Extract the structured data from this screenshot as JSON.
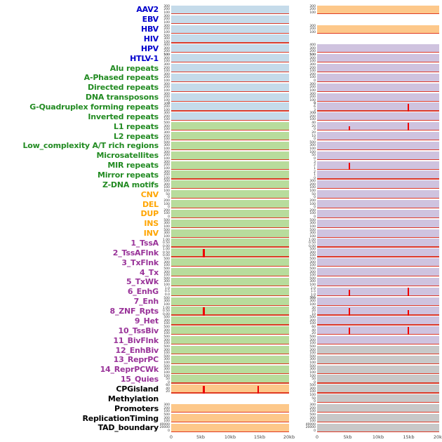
{
  "colors": {
    "label": {
      "virus": "#0000cc",
      "repeats": "#228B22",
      "sv": "#ffa500",
      "chromhmm": "#993399",
      "other": "#000000"
    },
    "panel": {
      "blue": "#c5dbea",
      "green": "#b8dc9c",
      "orange": "#fdc88a",
      "purple": "#cfc3df",
      "gray": "#c8c8c8"
    },
    "signal": "#ee0000"
  },
  "chart_data": {
    "type": "line",
    "x_axis": {
      "ticks": [
        "0",
        "5kb",
        "10kb",
        "15kb",
        "20kb"
      ],
      "range_kb": [
        0,
        20
      ]
    },
    "note_layout": "two columns of per-feature signal strips, flat red baseline with occasional spikes",
    "tracks": [
      {
        "label": "AAV2",
        "group": "virus",
        "left": {
          "bg": "blue",
          "ticks": [
            "300",
            "200",
            "100"
          ],
          "spikes": []
        },
        "right": {
          "bg": "orange",
          "ticks": [
            "300",
            "200",
            "100"
          ],
          "spikes": []
        }
      },
      {
        "label": "EBV",
        "group": "virus",
        "left": {
          "bg": "blue",
          "ticks": [
            "300",
            "200",
            "100"
          ],
          "spikes": []
        },
        "right": {
          "bg": "none",
          "ticks": [],
          "spikes": []
        }
      },
      {
        "label": "HBV",
        "group": "virus",
        "left": {
          "bg": "blue",
          "ticks": [
            "300",
            "200",
            "100"
          ],
          "spikes": []
        },
        "right": {
          "bg": "orange",
          "ticks": [
            "300",
            "200",
            "100"
          ],
          "spikes": []
        }
      },
      {
        "label": "HIV",
        "group": "virus",
        "left": {
          "bg": "blue",
          "ticks": [
            "500",
            "300",
            "100"
          ],
          "spikes": []
        },
        "right": {
          "bg": "none",
          "ticks": [],
          "spikes": []
        }
      },
      {
        "label": "HPV",
        "group": "virus",
        "left": {
          "bg": "blue",
          "ticks": [
            "400",
            "300",
            "200",
            "100"
          ],
          "spikes": []
        },
        "right": {
          "bg": "purple",
          "ticks": [
            "400",
            "300",
            "200",
            "100"
          ],
          "spikes": []
        }
      },
      {
        "label": "HTLV-1",
        "group": "virus",
        "left": {
          "bg": "blue",
          "ticks": [
            "500",
            "300",
            "100"
          ],
          "spikes": []
        },
        "right": {
          "bg": "purple",
          "ticks": [
            "500",
            "300",
            "100"
          ],
          "spikes": []
        }
      },
      {
        "label": "Alu repeats",
        "group": "repeats",
        "left": {
          "bg": "blue",
          "ticks": [
            "300",
            "200",
            "100"
          ],
          "spikes": []
        },
        "right": {
          "bg": "purple",
          "ticks": [
            "300",
            "200",
            "100"
          ],
          "spikes": []
        }
      },
      {
        "label": "A-Phased repeats",
        "group": "repeats",
        "left": {
          "bg": "blue",
          "ticks": [
            "300",
            "200",
            "100"
          ],
          "spikes": []
        },
        "right": {
          "bg": "purple",
          "ticks": [
            "200",
            "100",
            "0"
          ],
          "spikes": []
        }
      },
      {
        "label": "Directed repeats",
        "group": "repeats",
        "left": {
          "bg": "blue",
          "ticks": [
            "300",
            "200",
            "100"
          ],
          "spikes": []
        },
        "right": {
          "bg": "purple",
          "ticks": [
            "300",
            "200",
            "100"
          ],
          "spikes": []
        }
      },
      {
        "label": "DNA transposons",
        "group": "repeats",
        "left": {
          "bg": "blue",
          "ticks": [
            "300",
            "200",
            "100",
            "0"
          ],
          "spikes": []
        },
        "right": {
          "bg": "purple",
          "ticks": [
            "300",
            "200",
            "100",
            "0"
          ],
          "spikes": []
        }
      },
      {
        "label": "G-Quadruplex forming repeats",
        "group": "repeats",
        "left": {
          "bg": "blue",
          "ticks": [
            "300",
            "200",
            "100"
          ],
          "spikes": []
        },
        "right": {
          "bg": "purple",
          "ticks": [
            "9",
            "6",
            "3",
            "0"
          ],
          "spikes": [
            {
              "x": 0.74,
              "h": 0.85
            }
          ]
        }
      },
      {
        "label": "Inverted repeats",
        "group": "repeats",
        "left": {
          "bg": "blue",
          "ticks": [
            "300",
            "200",
            "100"
          ],
          "spikes": []
        },
        "right": {
          "bg": "purple",
          "ticks": [
            "300",
            "200",
            "100"
          ],
          "spikes": []
        }
      },
      {
        "label": "L1 repeats",
        "group": "repeats",
        "left": {
          "bg": "green",
          "ticks": [
            "500",
            "300",
            "100"
          ],
          "spikes": []
        },
        "right": {
          "bg": "purple",
          "ticks": [
            "40",
            "20",
            "0"
          ],
          "spikes": [
            {
              "x": 0.26,
              "h": 0.5
            },
            {
              "x": 0.74,
              "h": 0.9
            }
          ]
        }
      },
      {
        "label": "L2 repeats",
        "group": "repeats",
        "left": {
          "bg": "green",
          "ticks": [
            "300",
            "200",
            "100"
          ],
          "spikes": []
        },
        "right": {
          "bg": "purple",
          "ticks": [
            "20",
            "10",
            "0"
          ],
          "spikes": []
        }
      },
      {
        "label": "Low_complexity A/T rich regions",
        "group": "repeats",
        "left": {
          "bg": "green",
          "ticks": [
            "500",
            "300",
            "100"
          ],
          "spikes": []
        },
        "right": {
          "bg": "purple",
          "ticks": [
            "500",
            "300",
            "100"
          ],
          "spikes": []
        }
      },
      {
        "label": "Microsatellites",
        "group": "repeats",
        "left": {
          "bg": "green",
          "ticks": [
            "300",
            "200",
            "100"
          ],
          "spikes": []
        },
        "right": {
          "bg": "purple",
          "ticks": [
            "100",
            "50",
            "0"
          ],
          "spikes": []
        }
      },
      {
        "label": "MIR repeats",
        "group": "repeats",
        "left": {
          "bg": "green",
          "ticks": [
            "300",
            "200",
            "100"
          ],
          "spikes": []
        },
        "right": {
          "bg": "purple",
          "ticks": [
            "3",
            "2",
            "1"
          ],
          "spikes": [
            {
              "x": 0.26,
              "h": 0.8
            }
          ]
        }
      },
      {
        "label": "Mirror repeats",
        "group": "repeats",
        "left": {
          "bg": "green",
          "ticks": [
            "300",
            "200",
            "100"
          ],
          "spikes": []
        },
        "right": {
          "bg": "purple",
          "ticks": [
            "2",
            "1",
            "0"
          ],
          "spikes": []
        }
      },
      {
        "label": "Z-DNA motifs",
        "group": "repeats",
        "left": {
          "bg": "green",
          "ticks": [
            "500",
            "300",
            "100"
          ],
          "spikes": []
        },
        "right": {
          "bg": "purple",
          "ticks": [
            "300",
            "200",
            "100"
          ],
          "spikes": []
        }
      },
      {
        "label": "CNV",
        "group": "sv",
        "left": {
          "bg": "green",
          "ticks": [
            "100",
            "50",
            "0"
          ],
          "spikes": []
        },
        "right": {
          "bg": "purple",
          "ticks": [
            "100",
            "50",
            "0"
          ],
          "spikes": []
        }
      },
      {
        "label": "DEL",
        "group": "sv",
        "left": {
          "bg": "green",
          "ticks": [
            "200",
            "100",
            "0"
          ],
          "spikes": []
        },
        "right": {
          "bg": "purple",
          "ticks": [
            "200",
            "100",
            "0"
          ],
          "spikes": []
        }
      },
      {
        "label": "DUP",
        "group": "sv",
        "left": {
          "bg": "green",
          "ticks": [
            "200",
            "100",
            "0"
          ],
          "spikes": []
        },
        "right": {
          "bg": "purple",
          "ticks": [
            "200",
            "100",
            "0"
          ],
          "spikes": []
        }
      },
      {
        "label": "INS",
        "group": "sv",
        "left": {
          "bg": "green",
          "ticks": [
            "500",
            "300",
            "100"
          ],
          "spikes": []
        },
        "right": {
          "bg": "purple",
          "ticks": [
            "500",
            "300",
            "100"
          ],
          "spikes": []
        }
      },
      {
        "label": "INV",
        "group": "sv",
        "left": {
          "bg": "green",
          "ticks": [
            "500",
            "300",
            "100"
          ],
          "spikes": []
        },
        "right": {
          "bg": "purple",
          "ticks": [
            "500",
            "300",
            "100"
          ],
          "spikes": []
        }
      },
      {
        "label": "1_TssA",
        "group": "chromhmm",
        "left": {
          "bg": "green",
          "ticks": [
            "1.00",
            "0.50",
            "0.00"
          ],
          "spikes": []
        },
        "right": {
          "bg": "purple",
          "ticks": [
            "1.00",
            "0.50",
            "0.00"
          ],
          "spikes": []
        }
      },
      {
        "label": "2_TssAFlnk",
        "group": "chromhmm",
        "left": {
          "bg": "green",
          "ticks": [
            "1.00",
            "0.50",
            "0.00"
          ],
          "spikes": [
            {
              "x": 0.27,
              "h": 0.95
            }
          ]
        },
        "right": {
          "bg": "purple",
          "ticks": [
            "500",
            "300",
            "100"
          ],
          "spikes": []
        }
      },
      {
        "label": "3_TxFlnk",
        "group": "chromhmm",
        "left": {
          "bg": "green",
          "ticks": [
            "500",
            "300",
            "100"
          ],
          "spikes": []
        },
        "right": {
          "bg": "purple",
          "ticks": [
            "500",
            "300",
            "100"
          ],
          "spikes": []
        }
      },
      {
        "label": "4_Tx",
        "group": "chromhmm",
        "left": {
          "bg": "green",
          "ticks": [
            "500",
            "300",
            "100"
          ],
          "spikes": []
        },
        "right": {
          "bg": "purple",
          "ticks": [
            "500",
            "300",
            "100"
          ],
          "spikes": []
        }
      },
      {
        "label": "5_TxWk",
        "group": "chromhmm",
        "left": {
          "bg": "green",
          "ticks": [
            "500",
            "300",
            "100"
          ],
          "spikes": []
        },
        "right": {
          "bg": "purple",
          "ticks": [
            "500",
            "300",
            "100"
          ],
          "spikes": []
        }
      },
      {
        "label": "6_EnhG",
        "group": "chromhmm",
        "left": {
          "bg": "green",
          "ticks": [
            "1.0",
            "0.5",
            "0.0"
          ],
          "spikes": []
        },
        "right": {
          "bg": "purple",
          "ticks": [
            "2.0",
            "1.5",
            "1.0",
            "0.5"
          ],
          "spikes": [
            {
              "x": 0.26,
              "h": 0.75
            },
            {
              "x": 0.74,
              "h": 0.95
            }
          ]
        }
      },
      {
        "label": "7_Enh",
        "group": "chromhmm",
        "left": {
          "bg": "green",
          "ticks": [
            "500",
            "300",
            "100"
          ],
          "spikes": []
        },
        "right": {
          "bg": "purple",
          "ticks": [
            "500",
            "300",
            "100"
          ],
          "spikes": []
        }
      },
      {
        "label": "8_ZNF_Rpts",
        "group": "chromhmm",
        "left": {
          "bg": "green",
          "ticks": [
            "1.00",
            "0.50",
            "0.00"
          ],
          "spikes": [
            {
              "x": 0.27,
              "h": 0.95
            }
          ]
        },
        "right": {
          "bg": "purple",
          "ticks": [
            "30",
            "20",
            "10"
          ],
          "spikes": [
            {
              "x": 0.26,
              "h": 0.9
            },
            {
              "x": 0.74,
              "h": 0.6
            }
          ]
        }
      },
      {
        "label": "9_Het",
        "group": "chromhmm",
        "left": {
          "bg": "green",
          "ticks": [
            "500",
            "300",
            "100"
          ],
          "spikes": []
        },
        "right": {
          "bg": "purple",
          "ticks": [
            "500",
            "300",
            "100"
          ],
          "spikes": []
        }
      },
      {
        "label": "10_TssBiv",
        "group": "chromhmm",
        "left": {
          "bg": "green",
          "ticks": [
            "500",
            "300",
            "100"
          ],
          "spikes": []
        },
        "right": {
          "bg": "purple",
          "ticks": [
            "60",
            "40",
            "20"
          ],
          "spikes": [
            {
              "x": 0.26,
              "h": 0.85
            },
            {
              "x": 0.74,
              "h": 0.9
            }
          ]
        }
      },
      {
        "label": "11_BivFlnk",
        "group": "chromhmm",
        "left": {
          "bg": "green",
          "ticks": [
            "500",
            "300",
            "100"
          ],
          "spikes": []
        },
        "right": {
          "bg": "purple",
          "ticks": [
            "500",
            "300",
            "100"
          ],
          "spikes": []
        }
      },
      {
        "label": "12_EnhBiv",
        "group": "chromhmm",
        "left": {
          "bg": "green",
          "ticks": [
            "500",
            "300",
            "100"
          ],
          "spikes": []
        },
        "right": {
          "bg": "gray",
          "ticks": [
            "500",
            "300",
            "100"
          ],
          "spikes": []
        }
      },
      {
        "label": "13_ReprPC",
        "group": "chromhmm",
        "left": {
          "bg": "green",
          "ticks": [
            "500",
            "300",
            "100"
          ],
          "spikes": []
        },
        "right": {
          "bg": "gray",
          "ticks": [
            "500",
            "300",
            "100"
          ],
          "spikes": []
        }
      },
      {
        "label": "14_ReprPCWk",
        "group": "chromhmm",
        "left": {
          "bg": "green",
          "ticks": [
            "500",
            "300",
            "100"
          ],
          "spikes": []
        },
        "right": {
          "bg": "gray",
          "ticks": [
            "500",
            "300",
            "100"
          ],
          "spikes": []
        }
      },
      {
        "label": "15_Quies",
        "group": "chromhmm",
        "left": {
          "bg": "green",
          "ticks": [
            "100",
            "50",
            "0"
          ],
          "spikes": []
        },
        "right": {
          "bg": "gray",
          "ticks": [
            "100",
            "50",
            "0"
          ],
          "spikes": []
        }
      },
      {
        "label": "CPGisland",
        "group": "other",
        "left": {
          "bg": "orange",
          "ticks": [
            "60",
            "40",
            "20"
          ],
          "spikes": [
            {
              "x": 0.27,
              "h": 0.9
            },
            {
              "x": 0.73,
              "h": 0.85
            }
          ]
        },
        "right": {
          "bg": "gray",
          "ticks": [
            "500",
            "300",
            "100"
          ],
          "spikes": []
        }
      },
      {
        "label": "Methylation",
        "group": "other",
        "left": {
          "bg": "none",
          "ticks": [],
          "spikes": []
        },
        "right": {
          "bg": "gray",
          "ticks": [
            "100",
            "50",
            "0"
          ],
          "spikes": []
        }
      },
      {
        "label": "Promoters",
        "group": "other",
        "left": {
          "bg": "orange",
          "ticks": [
            "300",
            "200",
            "100"
          ],
          "spikes": []
        },
        "right": {
          "bg": "gray",
          "ticks": [
            "300",
            "200",
            "100"
          ],
          "spikes": []
        }
      },
      {
        "label": "ReplicationTiming",
        "group": "other",
        "left": {
          "bg": "orange",
          "ticks": [
            "500",
            "300",
            "100"
          ],
          "spikes": []
        },
        "right": {
          "bg": "gray",
          "ticks": [
            "500",
            "300",
            "100"
          ],
          "spikes": []
        }
      },
      {
        "label": "TAD_boundary",
        "group": "other",
        "left": {
          "bg": "orange",
          "ticks": [
            "40000",
            "20000",
            "0"
          ],
          "spikes": []
        },
        "right": {
          "bg": "gray",
          "ticks": [
            "40000",
            "20000",
            "0"
          ],
          "spikes": []
        }
      }
    ]
  }
}
